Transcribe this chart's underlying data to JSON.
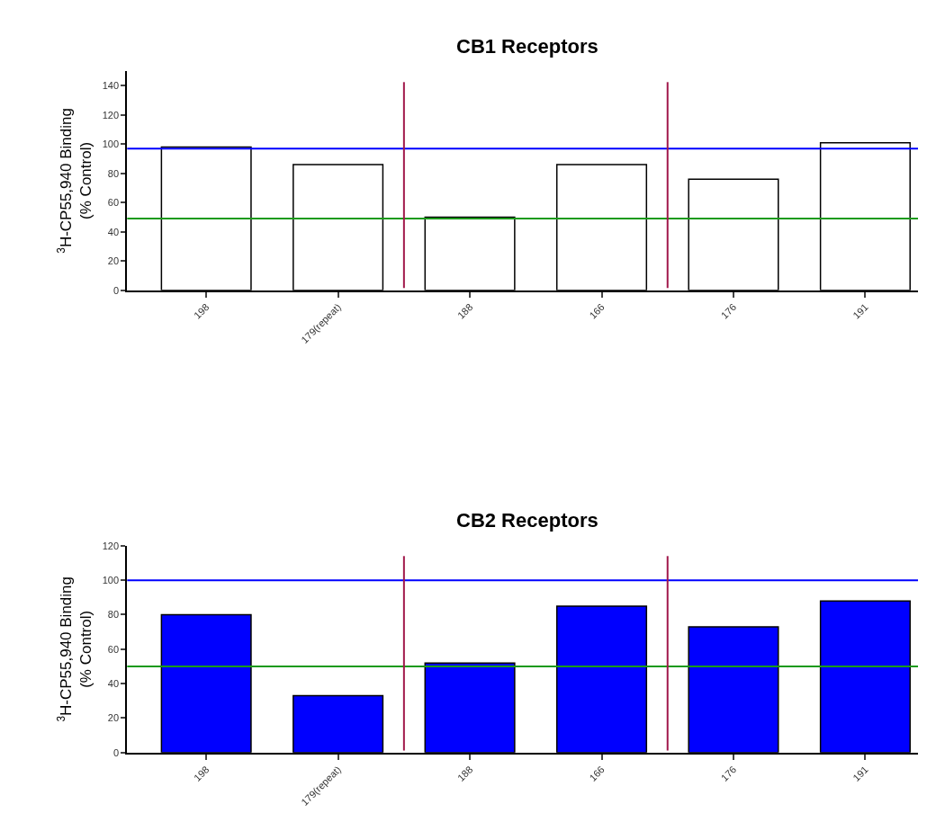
{
  "chart_data": [
    {
      "type": "bar",
      "title": "CB1 Receptors",
      "ylabel": "$^{3}$H-CP55,940 Binding\n(% Control)",
      "categories": [
        "198",
        "179(repeat)",
        "188",
        "166",
        "176",
        "191"
      ],
      "series": [
        {
          "color": "#ffffff",
          "values": [
            98,
            86,
            50,
            86,
            76,
            101
          ]
        }
      ],
      "ylim": [
        0,
        150
      ],
      "yticks": [
        0,
        20,
        40,
        60,
        80,
        100,
        120,
        140
      ],
      "ref_lines": [
        {
          "axis": "y",
          "value": 97,
          "color": "#0000ff"
        },
        {
          "axis": "y",
          "value": 49,
          "color": "#1a9a1a"
        }
      ]
    },
    {
      "type": "bar",
      "title": "CB2 Receptors",
      "ylabel": "$^{3}$H-CP55,940 Binding\n(% Control)",
      "categories": [
        "198",
        "179(repeat)",
        "188",
        "166",
        "176",
        "191"
      ],
      "series": [
        {
          "color": "#0000ff",
          "values": [
            80,
            33,
            52,
            85,
            73,
            88
          ]
        }
      ],
      "ylim": [
        0,
        120
      ],
      "yticks": [
        0,
        20,
        40,
        60,
        80,
        100,
        120
      ],
      "ref_lines": [
        {
          "axis": "y",
          "value": 100,
          "color": "#0000ff"
        },
        {
          "axis": "y",
          "value": 50,
          "color": "#1a9a1a"
        }
      ]
    }
  ]
}
